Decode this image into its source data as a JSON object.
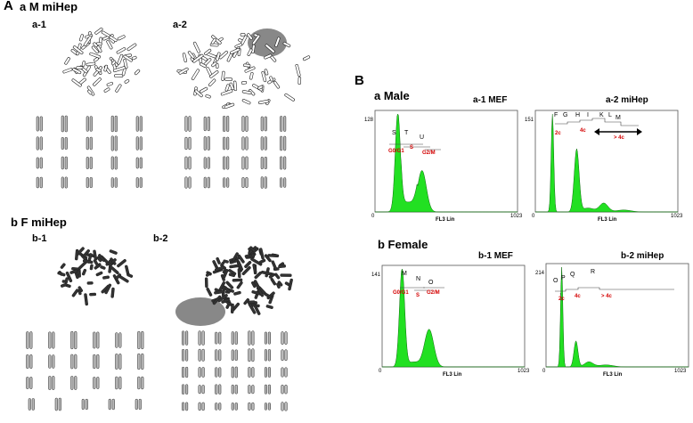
{
  "panelA": {
    "letter": "A",
    "a_title": "a M miHep",
    "a1": "a-1",
    "a2": "a-2",
    "b_title": "b F miHep",
    "b1": "b-1",
    "b2": "b-2"
  },
  "panelB": {
    "letter": "B",
    "a_title": "a Male",
    "b_title": "b Female"
  },
  "histograms": [
    {
      "id": "a1",
      "title": "a-1 MEF",
      "ymax": "128",
      "xmax": "1023",
      "xmin": "0",
      "xlabel": "FL3 Lin",
      "gates": [
        "S",
        "T",
        "U"
      ],
      "phases": [
        "G0/G1",
        "S",
        "G2/M"
      ]
    },
    {
      "id": "a2",
      "title": "a-2 miHep",
      "ymax": "151",
      "xmax": "1023",
      "xmin": "0",
      "xlabel": "FL3 Lin",
      "gates": [
        "F",
        "G",
        "H",
        "I",
        "K",
        "L",
        "M"
      ],
      "ploidy": [
        "2c",
        "4c",
        "> 4c"
      ]
    },
    {
      "id": "b1",
      "title": "b-1 MEF",
      "ymax": "141",
      "xmax": "1023",
      "xmin": "0",
      "xlabel": "FL3 Lin",
      "gates": [
        "M",
        "N",
        "O"
      ],
      "phases": [
        "G0/G1",
        "S",
        "G2/M"
      ]
    },
    {
      "id": "b2",
      "title": "b-2 miHep",
      "ymax": "214",
      "xmax": "1023",
      "xmin": "0",
      "xlabel": "FL3 Lin",
      "gates": [
        "O",
        "P",
        "Q",
        "R"
      ],
      "ploidy": [
        "2c",
        "4c",
        "> 4c"
      ]
    }
  ],
  "colors": {
    "fill": "#22e022",
    "stroke": "#0a6a0a",
    "red": "#d40000"
  }
}
